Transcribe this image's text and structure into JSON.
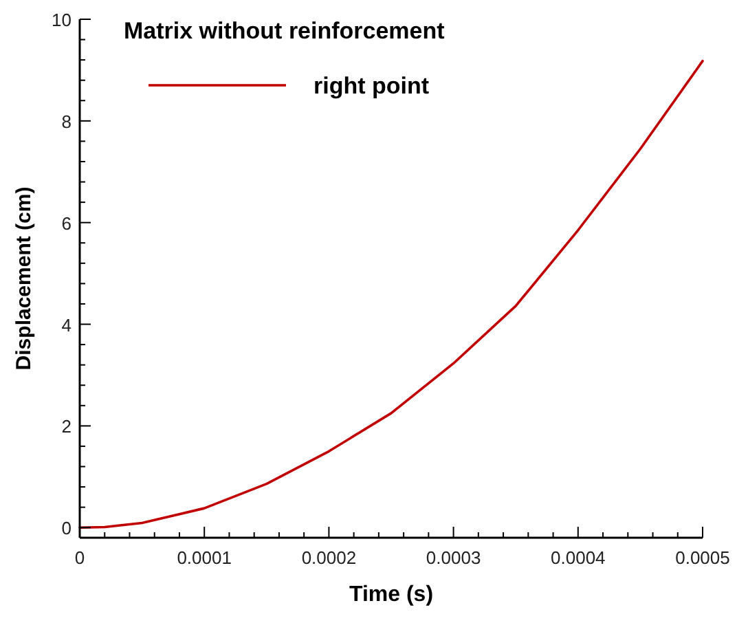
{
  "chart_data": {
    "type": "line",
    "title": "Matrix without reinforcement",
    "xlabel": "Time (s)",
    "ylabel": "Displacement (cm)",
    "x": [
      0,
      2e-05,
      5e-05,
      0.0001,
      0.00015,
      0.0002,
      0.00025,
      0.0003,
      0.00035,
      0.0004,
      0.00045,
      0.0005
    ],
    "series": [
      {
        "name": "right point",
        "color": "#c00000",
        "values": [
          0,
          0.01,
          0.09,
          0.38,
          0.86,
          1.5,
          2.25,
          3.23,
          4.36,
          5.85,
          7.45,
          9.18
        ]
      }
    ],
    "xlim": [
      0,
      0.0005
    ],
    "ylim": [
      -0.2,
      10
    ],
    "xticks": [
      0,
      {
        "value": 2e-05,
        "label": null
      },
      {
        "value": 4e-05,
        "label": null
      },
      {
        "value": 6e-05,
        "label": null
      },
      {
        "value": 8e-05,
        "label": null
      },
      0.0001,
      {
        "value": 0.00012,
        "label": null
      },
      {
        "value": 0.00014,
        "label": null
      },
      {
        "value": 0.00016,
        "label": null
      },
      {
        "value": 0.00018,
        "label": null
      },
      0.0002,
      {
        "value": 0.00022,
        "label": null
      },
      {
        "value": 0.00024,
        "label": null
      },
      {
        "value": 0.00026,
        "label": null
      },
      {
        "value": 0.00028,
        "label": null
      },
      0.0003,
      {
        "value": 0.00032,
        "label": null
      },
      {
        "value": 0.00034,
        "label": null
      },
      {
        "value": 0.00036,
        "label": null
      },
      {
        "value": 0.00038,
        "label": null
      },
      0.0004,
      {
        "value": 0.00042,
        "label": null
      },
      {
        "value": 0.00044,
        "label": null
      },
      {
        "value": 0.00046,
        "label": null
      },
      {
        "value": 0.00048,
        "label": null
      },
      0.0005
    ],
    "yticks": [
      0,
      {
        "value": 0.4,
        "label": null
      },
      {
        "value": 0.8,
        "label": null
      },
      {
        "value": 1.2,
        "label": null
      },
      {
        "value": 1.6,
        "label": null
      },
      2,
      {
        "value": 2.4,
        "label": null
      },
      {
        "value": 2.8,
        "label": null
      },
      {
        "value": 3.2,
        "label": null
      },
      {
        "value": 3.6,
        "label": null
      },
      4,
      {
        "value": 4.4,
        "label": null
      },
      {
        "value": 4.8,
        "label": null
      },
      {
        "value": 5.2,
        "label": null
      },
      {
        "value": 5.6,
        "label": null
      },
      6,
      {
        "value": 6.4,
        "label": null
      },
      {
        "value": 6.8,
        "label": null
      },
      {
        "value": 7.2,
        "label": null
      },
      {
        "value": 7.6,
        "label": null
      },
      8,
      {
        "value": 8.4,
        "label": null
      },
      {
        "value": 8.8,
        "label": null
      },
      {
        "value": 9.2,
        "label": null
      },
      {
        "value": 9.6,
        "label": null
      },
      10
    ],
    "grid": false,
    "legend": "top left",
    "marker": "none",
    "line_style": "solid"
  }
}
